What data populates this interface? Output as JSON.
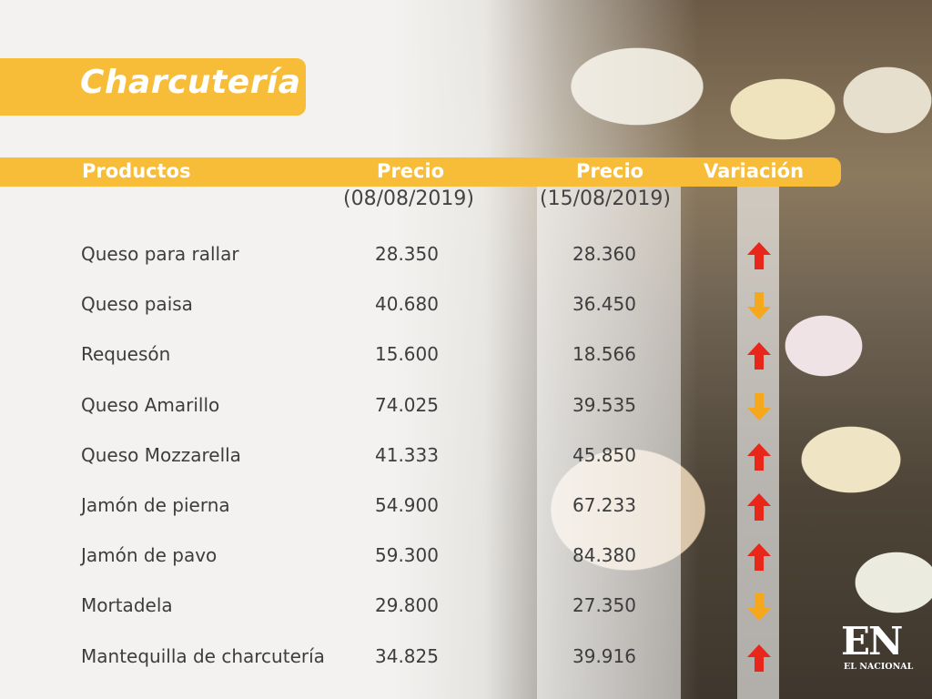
{
  "title": "Charcutería",
  "headers": {
    "productos": "Productos",
    "precio1": "Precio",
    "precio2": "Precio",
    "variacion": "Variación"
  },
  "dates": {
    "date1": "(08/08/2019)",
    "date2": "(15/08/2019)"
  },
  "rows": [
    {
      "name": "Queso para rallar",
      "p1": "28.350",
      "p2": "28.360",
      "trend": "up"
    },
    {
      "name": "Queso paisa",
      "p1": "40.680",
      "p2": "36.450",
      "trend": "down"
    },
    {
      "name": "Requesón",
      "p1": "15.600",
      "p2": "18.566",
      "trend": "up"
    },
    {
      "name": "Queso Amarillo",
      "p1": "74.025",
      "p2": "39.535",
      "trend": "down"
    },
    {
      "name": "Queso Mozzarella",
      "p1": "41.333",
      "p2": "45.850",
      "trend": "up"
    },
    {
      "name": "Jamón de pierna",
      "p1": "54.900",
      "p2": "67.233",
      "trend": "up"
    },
    {
      "name": "Jamón de pavo",
      "p1": "59.300",
      "p2": "84.380",
      "trend": "up"
    },
    {
      "name": "Mortadela",
      "p1": "29.800",
      "p2": "27.350",
      "trend": "down"
    },
    {
      "name": "Mantequilla de charcutería",
      "p1": "34.825",
      "p2": "39.916",
      "trend": "up"
    }
  ],
  "colors": {
    "accent": "#f8bd38",
    "up_arrow": "#e8261a",
    "down_arrow": "#f5a81c"
  },
  "logo": {
    "mark": "EN",
    "sub": "EL NACIONAL"
  }
}
